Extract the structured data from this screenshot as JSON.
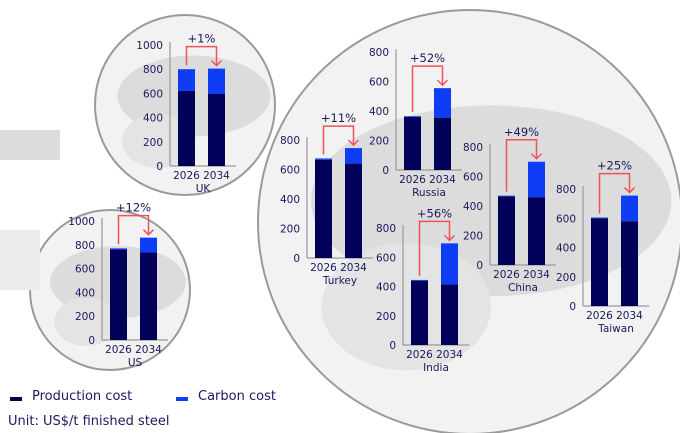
{
  "legend": {
    "production": "Production cost",
    "carbon": "Carbon cost",
    "unit": "Unit: US$/t finished steel"
  },
  "colors": {
    "production": "#01015a",
    "carbon": "#0f3df5",
    "arrow": "#f0525c",
    "map": "#dcdcdc",
    "circle": "#9a9a9a"
  },
  "chart_data": [
    {
      "type": "bar",
      "stacked": true,
      "title": "UK",
      "categories": [
        "2026",
        "2034"
      ],
      "change": "+1%",
      "ylim": [
        0,
        1000
      ],
      "yticks": [
        0,
        200,
        400,
        600,
        800,
        1000
      ],
      "series": [
        {
          "name": "Production cost",
          "values": [
            620,
            595
          ]
        },
        {
          "name": "Carbon cost",
          "values": [
            180,
            210
          ]
        }
      ]
    },
    {
      "type": "bar",
      "stacked": true,
      "title": "US",
      "categories": [
        "2026",
        "2034"
      ],
      "change": "+12%",
      "ylim": [
        0,
        1000
      ],
      "yticks": [
        0,
        200,
        400,
        600,
        800,
        1000
      ],
      "series": [
        {
          "name": "Production cost",
          "values": [
            760,
            735
          ]
        },
        {
          "name": "Carbon cost",
          "values": [
            10,
            125
          ]
        }
      ]
    },
    {
      "type": "bar",
      "stacked": true,
      "title": "Turkey",
      "categories": [
        "2026",
        "2034"
      ],
      "change": "+11%",
      "ylim": [
        0,
        800
      ],
      "yticks": [
        0,
        200,
        400,
        600,
        800
      ],
      "series": [
        {
          "name": "Production cost",
          "values": [
            665,
            640
          ]
        },
        {
          "name": "Carbon cost",
          "values": [
            10,
            105
          ]
        }
      ]
    },
    {
      "type": "bar",
      "stacked": true,
      "title": "Russia",
      "categories": [
        "2026",
        "2034"
      ],
      "change": "+52%",
      "ylim": [
        0,
        800
      ],
      "yticks": [
        0,
        200,
        400,
        600,
        800
      ],
      "series": [
        {
          "name": "Production cost",
          "values": [
            360,
            355
          ]
        },
        {
          "name": "Carbon cost",
          "values": [
            5,
            200
          ]
        }
      ]
    },
    {
      "type": "bar",
      "stacked": true,
      "title": "China",
      "categories": [
        "2026",
        "2034"
      ],
      "change": "+49%",
      "ylim": [
        0,
        800
      ],
      "yticks": [
        0,
        200,
        400,
        600,
        800
      ],
      "series": [
        {
          "name": "Production cost",
          "values": [
            465,
            460
          ]
        },
        {
          "name": "Carbon cost",
          "values": [
            5,
            240
          ]
        }
      ]
    },
    {
      "type": "bar",
      "stacked": true,
      "title": "India",
      "categories": [
        "2026",
        "2034"
      ],
      "change": "+56%",
      "ylim": [
        0,
        800
      ],
      "yticks": [
        0,
        200,
        400,
        600,
        800
      ],
      "series": [
        {
          "name": "Production cost",
          "values": [
            440,
            415
          ]
        },
        {
          "name": "Carbon cost",
          "values": [
            5,
            280
          ]
        }
      ]
    },
    {
      "type": "bar",
      "stacked": true,
      "title": "Taiwan",
      "categories": [
        "2026",
        "2034"
      ],
      "change": "+25%",
      "ylim": [
        0,
        800
      ],
      "yticks": [
        0,
        200,
        400,
        600,
        800
      ],
      "series": [
        {
          "name": "Production cost",
          "values": [
            600,
            580
          ]
        },
        {
          "name": "Carbon cost",
          "values": [
            5,
            175
          ]
        }
      ]
    }
  ]
}
